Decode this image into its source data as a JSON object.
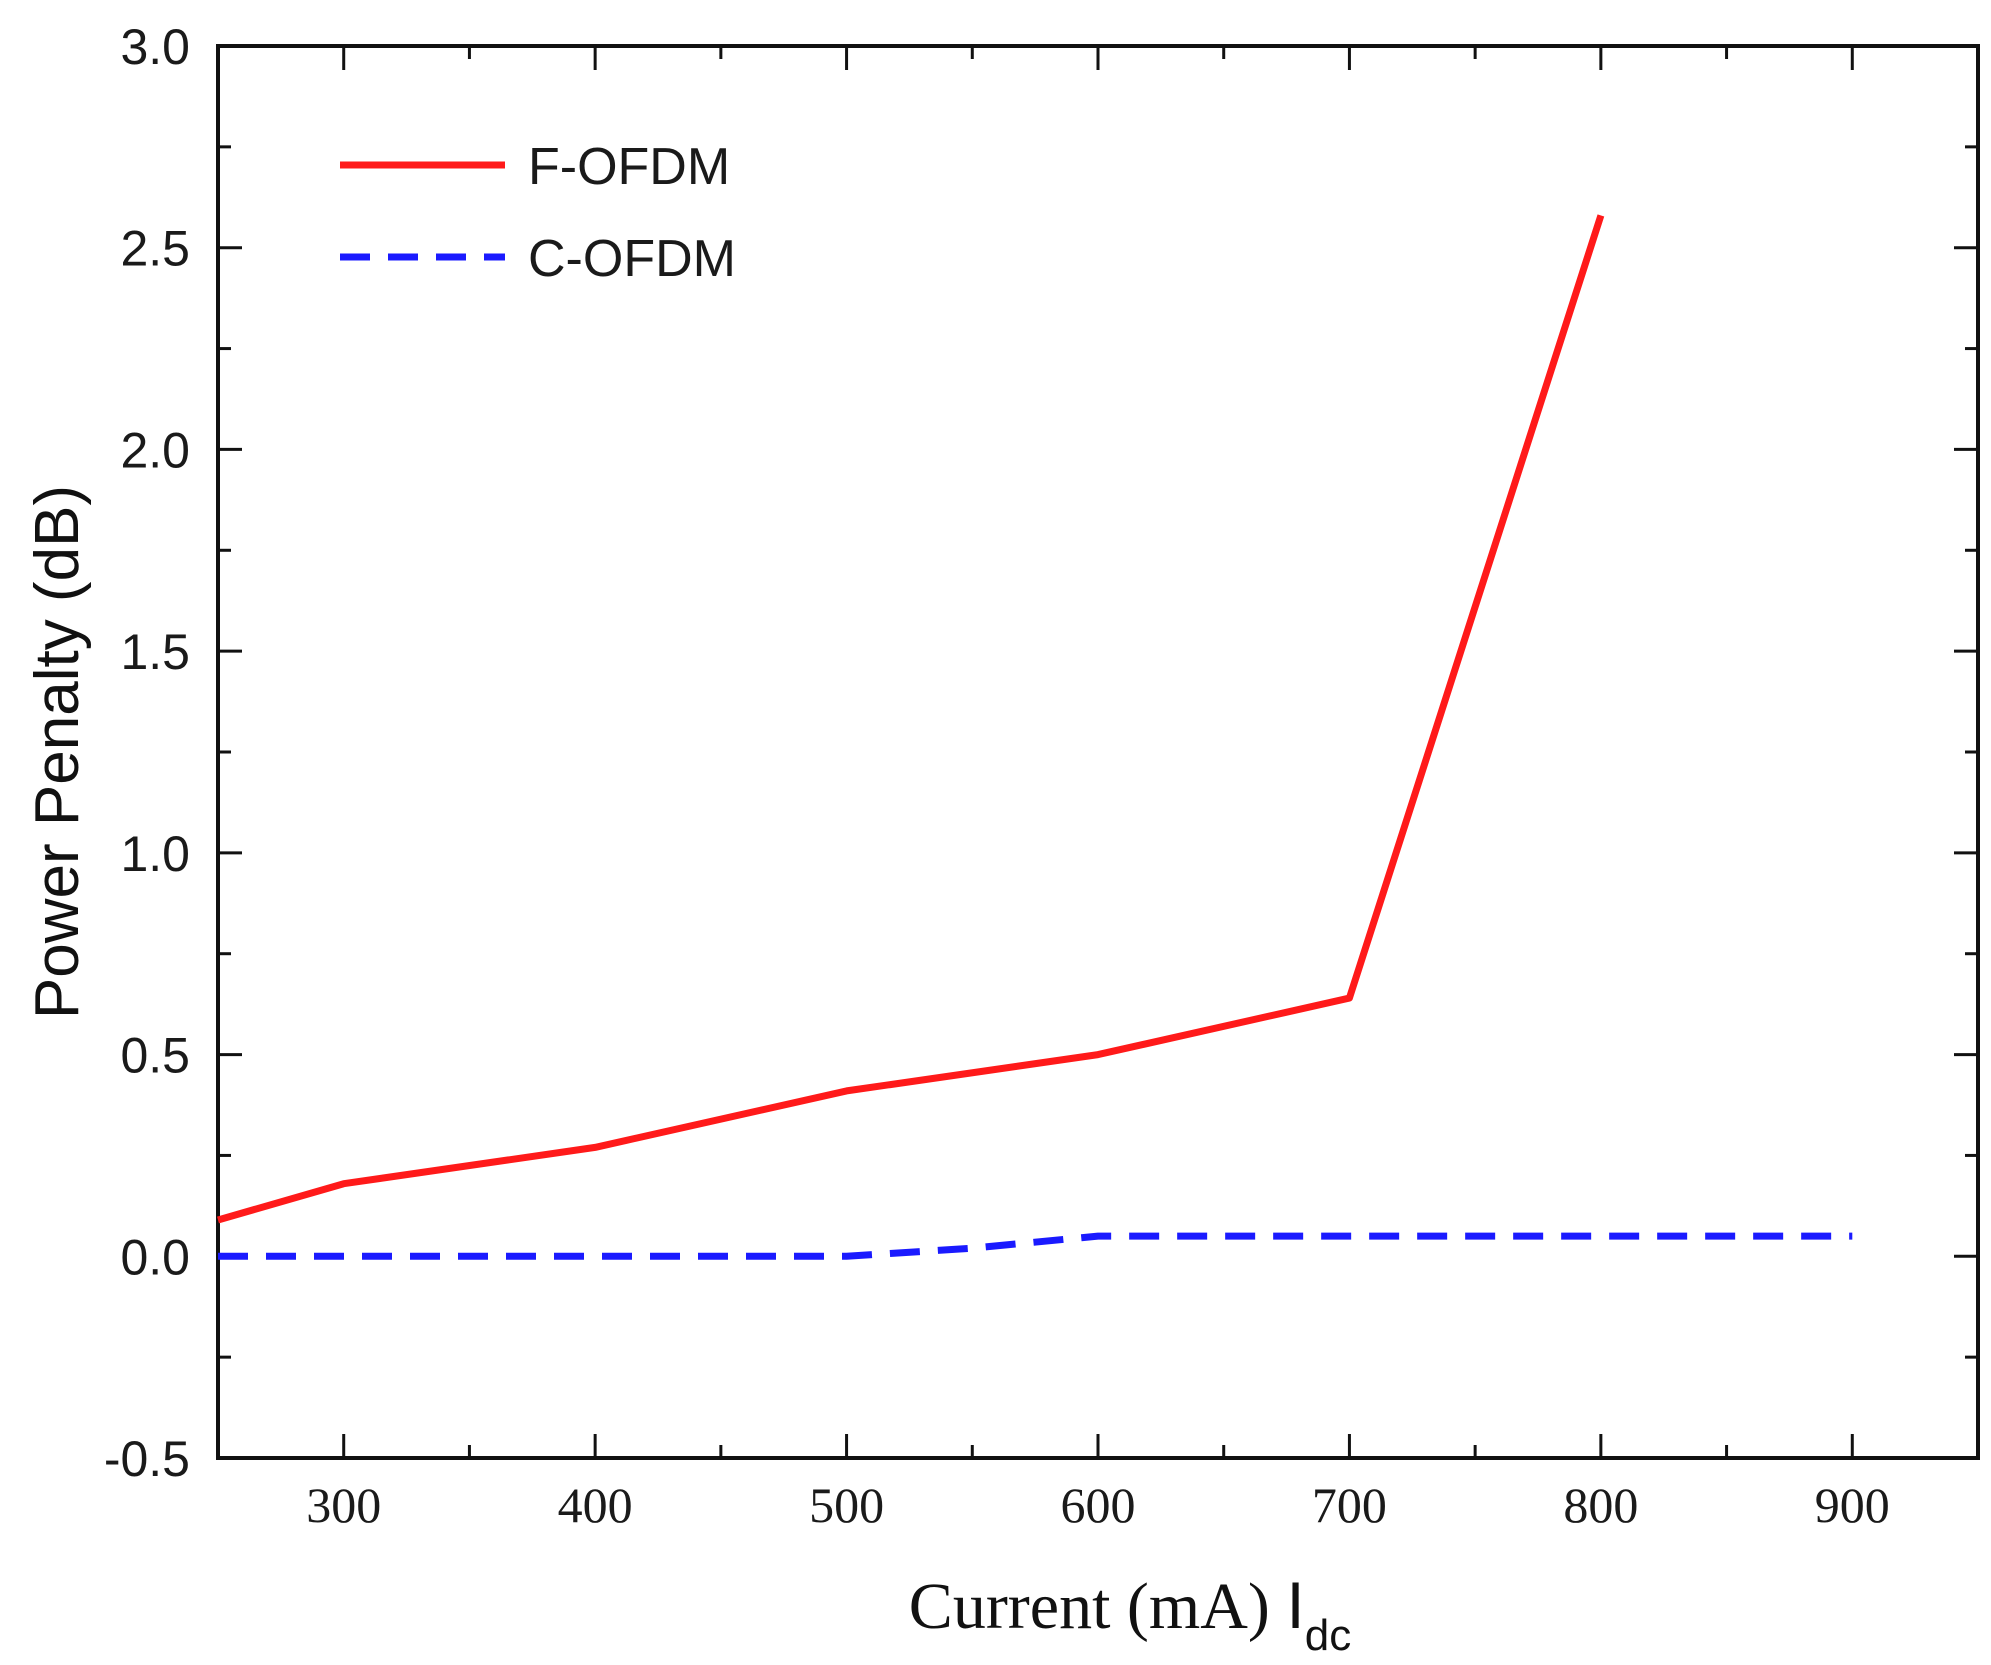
{
  "chart_data": {
    "type": "line",
    "title": "",
    "xlabel": "Current (mA) ",
    "xlabel_symbol": "I",
    "xlabel_subscript": "dc",
    "ylabel": "Power Penalty (dB)",
    "xlim": [
      250,
      950
    ],
    "ylim": [
      -0.5,
      3.0
    ],
    "xticks": [
      300,
      400,
      500,
      600,
      700,
      800,
      900
    ],
    "xtick_labels": [
      "300",
      "400",
      "500",
      "600",
      "700",
      "800",
      "900"
    ],
    "yticks": [
      -0.5,
      0.0,
      0.5,
      1.0,
      1.5,
      2.0,
      2.5,
      3.0
    ],
    "ytick_labels": [
      "-0.5",
      "0.0",
      "0.5",
      "1.0",
      "1.5",
      "2.0",
      "2.5",
      "3.0"
    ],
    "legend_position": "top-left",
    "grid": false,
    "series": [
      {
        "name": "F-OFDM",
        "color": "#ff1a1a",
        "style": "solid",
        "x": [
          250,
          300,
          400,
          500,
          600,
          700,
          800
        ],
        "y": [
          0.09,
          0.18,
          0.27,
          0.41,
          0.5,
          0.64,
          2.58
        ]
      },
      {
        "name": "C-OFDM",
        "color": "#1a1aff",
        "style": "dashed",
        "x": [
          250,
          300,
          400,
          500,
          550,
          600,
          700,
          800,
          900
        ],
        "y": [
          0.0,
          0.0,
          0.0,
          0.0,
          0.02,
          0.05,
          0.05,
          0.05,
          0.05
        ]
      }
    ]
  }
}
